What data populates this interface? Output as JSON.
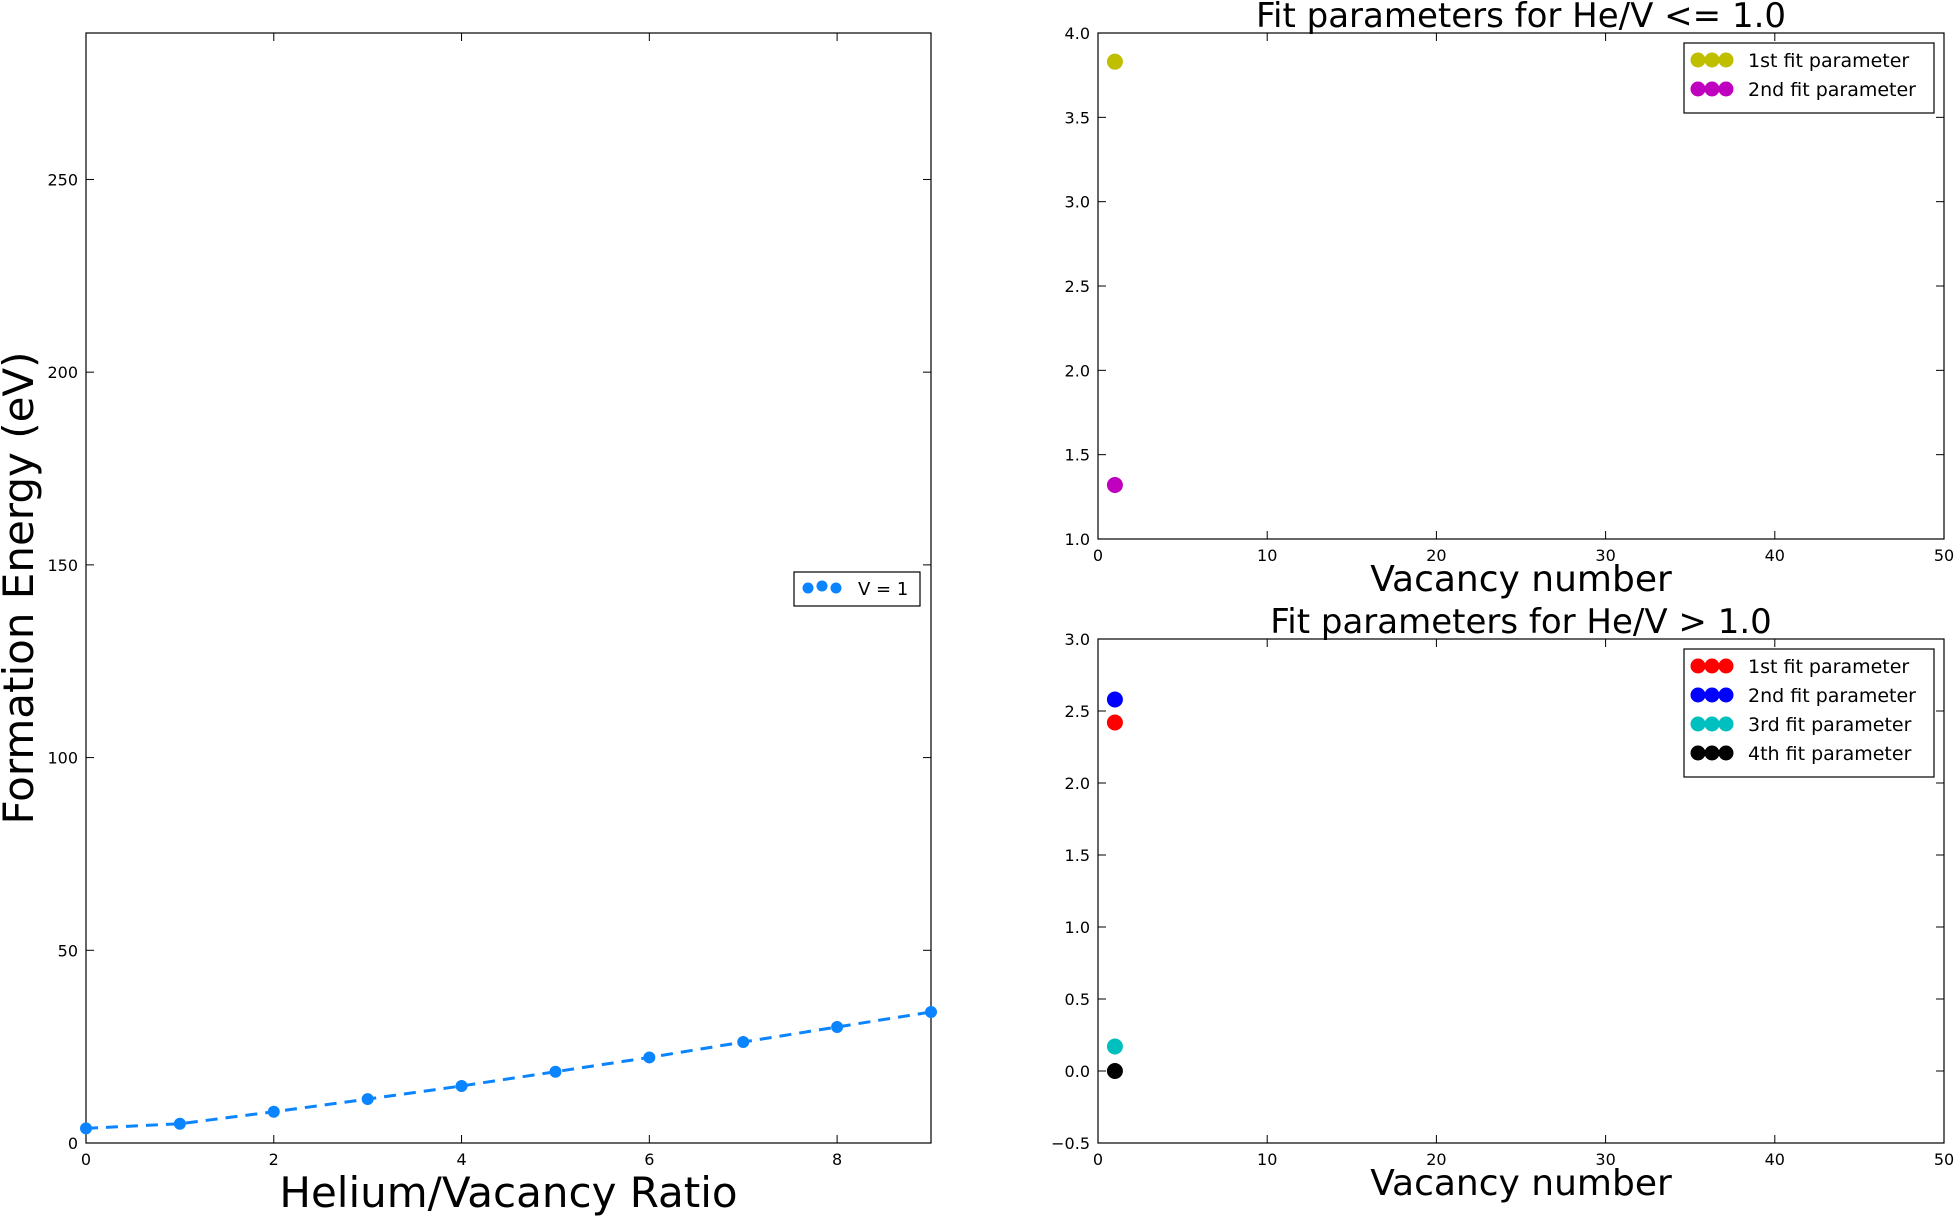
{
  "chart_data": [
    {
      "type": "line",
      "title": "",
      "xlabel": "Helium/Vacancy Ratio",
      "ylabel": "Formation Energy (eV)",
      "xlim": [
        0,
        9
      ],
      "ylim": [
        0,
        288
      ],
      "xticks": [
        0,
        2,
        4,
        6,
        8
      ],
      "yticks": [
        0,
        50,
        100,
        150,
        200,
        250
      ],
      "grid": false,
      "legend_position": "center-right",
      "series": [
        {
          "name": "V = 1",
          "color": "#0a84ff",
          "style": "dashed-with-markers",
          "x": [
            0,
            1,
            2,
            3,
            4,
            5,
            6,
            7,
            8,
            9
          ],
          "y": [
            3.8,
            5.0,
            8.1,
            11.4,
            14.8,
            18.5,
            22.2,
            26.2,
            30.1,
            34.0
          ]
        }
      ]
    },
    {
      "type": "scatter",
      "title": "Fit parameters for He/V <= 1.0",
      "xlabel": "Vacancy number",
      "ylabel": "",
      "xlim": [
        0,
        50
      ],
      "ylim": [
        1.0,
        4.0
      ],
      "xticks": [
        0,
        10,
        20,
        30,
        40,
        50
      ],
      "yticks": [
        1.0,
        1.5,
        2.0,
        2.5,
        3.0,
        3.5,
        4.0
      ],
      "grid": false,
      "legend_position": "top-right",
      "series": [
        {
          "name": "1st fit parameter",
          "color": "#bfbf00",
          "x": [
            1
          ],
          "y": [
            3.83
          ]
        },
        {
          "name": "2nd fit parameter",
          "color": "#bf00bf",
          "x": [
            1
          ],
          "y": [
            1.32
          ]
        }
      ]
    },
    {
      "type": "scatter",
      "title": "Fit parameters for He/V > 1.0",
      "xlabel": "Vacancy number",
      "ylabel": "",
      "xlim": [
        0,
        50
      ],
      "ylim": [
        -0.5,
        3.0
      ],
      "xticks": [
        0,
        10,
        20,
        30,
        40,
        50
      ],
      "yticks": [
        -0.5,
        0.0,
        0.5,
        1.0,
        1.5,
        2.0,
        2.5,
        3.0
      ],
      "grid": false,
      "legend_position": "top-right",
      "series": [
        {
          "name": "1st fit parameter",
          "color": "#ff0000",
          "x": [
            1
          ],
          "y": [
            2.42
          ]
        },
        {
          "name": "2nd fit parameter",
          "color": "#0000ff",
          "x": [
            1
          ],
          "y": [
            2.58
          ]
        },
        {
          "name": "3rd fit parameter",
          "color": "#00bfbf",
          "x": [
            1
          ],
          "y": [
            0.17
          ]
        },
        {
          "name": "4th fit parameter",
          "color": "#000000",
          "x": [
            1
          ],
          "y": [
            0.0
          ]
        }
      ]
    }
  ]
}
